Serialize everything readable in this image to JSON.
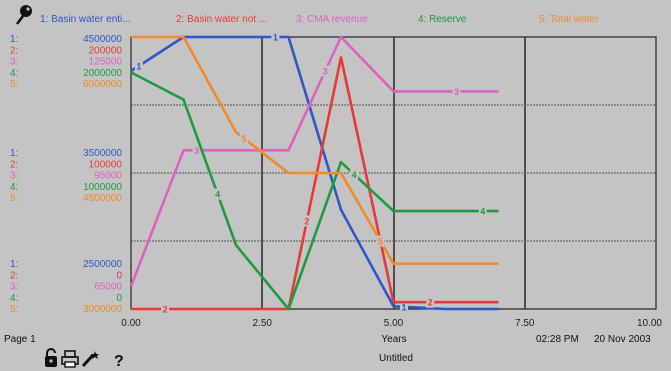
{
  "legend": [
    {
      "label": "1: Basin water enti...",
      "color": "#2f57c8"
    },
    {
      "label": "2: Basin water not ...",
      "color": "#e63a3a"
    },
    {
      "label": "3: CMA revenue",
      "color": "#e060c0"
    },
    {
      "label": "4: Reserve",
      "color": "#1f9b3f"
    },
    {
      "label": "5: Total water",
      "color": "#f08a2a"
    }
  ],
  "scales": {
    "top": [
      [
        "1:",
        "4500000"
      ],
      [
        "2:",
        "200000"
      ],
      [
        "3:",
        "125000"
      ],
      [
        "4:",
        "2000000"
      ],
      [
        "5:",
        "6000000"
      ]
    ],
    "middle": [
      [
        "1:",
        "3500000"
      ],
      [
        "2:",
        "100000"
      ],
      [
        "3:",
        "95000"
      ],
      [
        "4:",
        "1000000"
      ],
      [
        "5:",
        "4500000"
      ]
    ],
    "bottom": [
      [
        "1:",
        "2500000"
      ],
      [
        "2:",
        "0"
      ],
      [
        "3:",
        "65000"
      ],
      [
        "4:",
        "0"
      ],
      [
        "5:",
        "3000000"
      ]
    ]
  },
  "footer": {
    "page": "Page 1",
    "untitled": "Untitled",
    "time": "02:28 PM",
    "date": "20 Nov 2003",
    "help_label": "?"
  },
  "chart_data": {
    "type": "line",
    "title": "",
    "xlabel": "Years",
    "xlim": [
      0,
      10
    ],
    "xticks": [
      "0.00",
      "2.50",
      "5.00",
      "7.50",
      "10.00"
    ],
    "grid": true,
    "legend_position": "top",
    "series": [
      {
        "name": "Basin water enti...",
        "marker": "1",
        "color": "#2f57c8",
        "ylim": [
          2500000,
          4500000
        ],
        "x": [
          0,
          1,
          2,
          3,
          4,
          5,
          6,
          7
        ],
        "y": [
          4250000,
          4500000,
          4500000,
          4500000,
          3230000,
          2520000,
          2500000,
          2500000
        ],
        "marker_x": [
          0.15,
          2.75,
          5.2
        ]
      },
      {
        "name": "Basin water not ...",
        "marker": "2",
        "color": "#e63a3a",
        "ylim": [
          0,
          200000
        ],
        "x": [
          0,
          1,
          2,
          3,
          4,
          5,
          6,
          7
        ],
        "y": [
          0,
          0,
          0,
          0,
          185000,
          5000,
          5000,
          5000
        ],
        "marker_x": [
          0.65,
          3.35,
          5.7
        ]
      },
      {
        "name": "CMA revenue",
        "marker": "3",
        "color": "#e060c0",
        "ylim": [
          65000,
          125000
        ],
        "x": [
          0,
          1,
          2,
          3,
          4,
          5,
          6,
          7
        ],
        "y": [
          70000,
          100000,
          100000,
          100000,
          125000,
          113000,
          113000,
          113000
        ],
        "marker_x": [
          1.25,
          3.7,
          6.2
        ]
      },
      {
        "name": "Reserve",
        "marker": "4",
        "color": "#1f9b3f",
        "ylim": [
          0,
          2000000
        ],
        "x": [
          0,
          1,
          2,
          3,
          4,
          5,
          6,
          7
        ],
        "y": [
          1740000,
          1540000,
          470000,
          0,
          1080000,
          720000,
          720000,
          720000
        ],
        "marker_x": [
          1.65,
          4.25,
          6.7
        ]
      },
      {
        "name": "Total water",
        "marker": "5",
        "color": "#f08a2a",
        "ylim": [
          3000000,
          6000000
        ],
        "x": [
          0,
          1,
          2,
          3,
          4,
          5,
          6,
          7
        ],
        "y": [
          6000000,
          6000000,
          4950000,
          4500000,
          4500000,
          3500000,
          3500000,
          3500000
        ],
        "marker_x": [
          2.15,
          4.75
        ]
      }
    ]
  }
}
